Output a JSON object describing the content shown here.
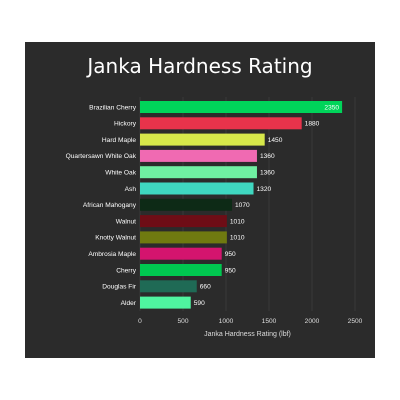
{
  "chart_data": {
    "type": "bar",
    "orientation": "horizontal",
    "title": "Janka Hardness Rating",
    "xlabel": "Janka Hardness Rating (lbf)",
    "ylabel": "",
    "xlim": [
      0,
      2500
    ],
    "xticks": [
      "0",
      "500",
      "1000",
      "1500",
      "2000",
      "2500"
    ],
    "grid": true,
    "categories": [
      "Brazilian Cherry",
      "Hickory",
      "Hard Maple",
      "Quartersawn White Oak",
      "White Oak",
      "Ash",
      "African Mahogany",
      "Walnut",
      "Knotty Walnut",
      "Ambrosia Maple",
      "Cherry",
      "Douglas Fir",
      "Alder"
    ],
    "values": [
      2350,
      1880,
      1450,
      1360,
      1360,
      1320,
      1070,
      1010,
      1010,
      950,
      950,
      660,
      590
    ],
    "value_labels": [
      "2350",
      "1880",
      "1450",
      "1360",
      "1360",
      "1320",
      "1070",
      "1010",
      "1010",
      "950",
      "950",
      "660",
      "590"
    ],
    "colors": [
      "#00d45a",
      "#e8334b",
      "#d7e84a",
      "#f06ab2",
      "#6ff0a2",
      "#3fd7c0",
      "#0d2a16",
      "#6e0d16",
      "#6f7a10",
      "#d4146e",
      "#00c850",
      "#1f6a55",
      "#4ff5a0"
    ]
  }
}
